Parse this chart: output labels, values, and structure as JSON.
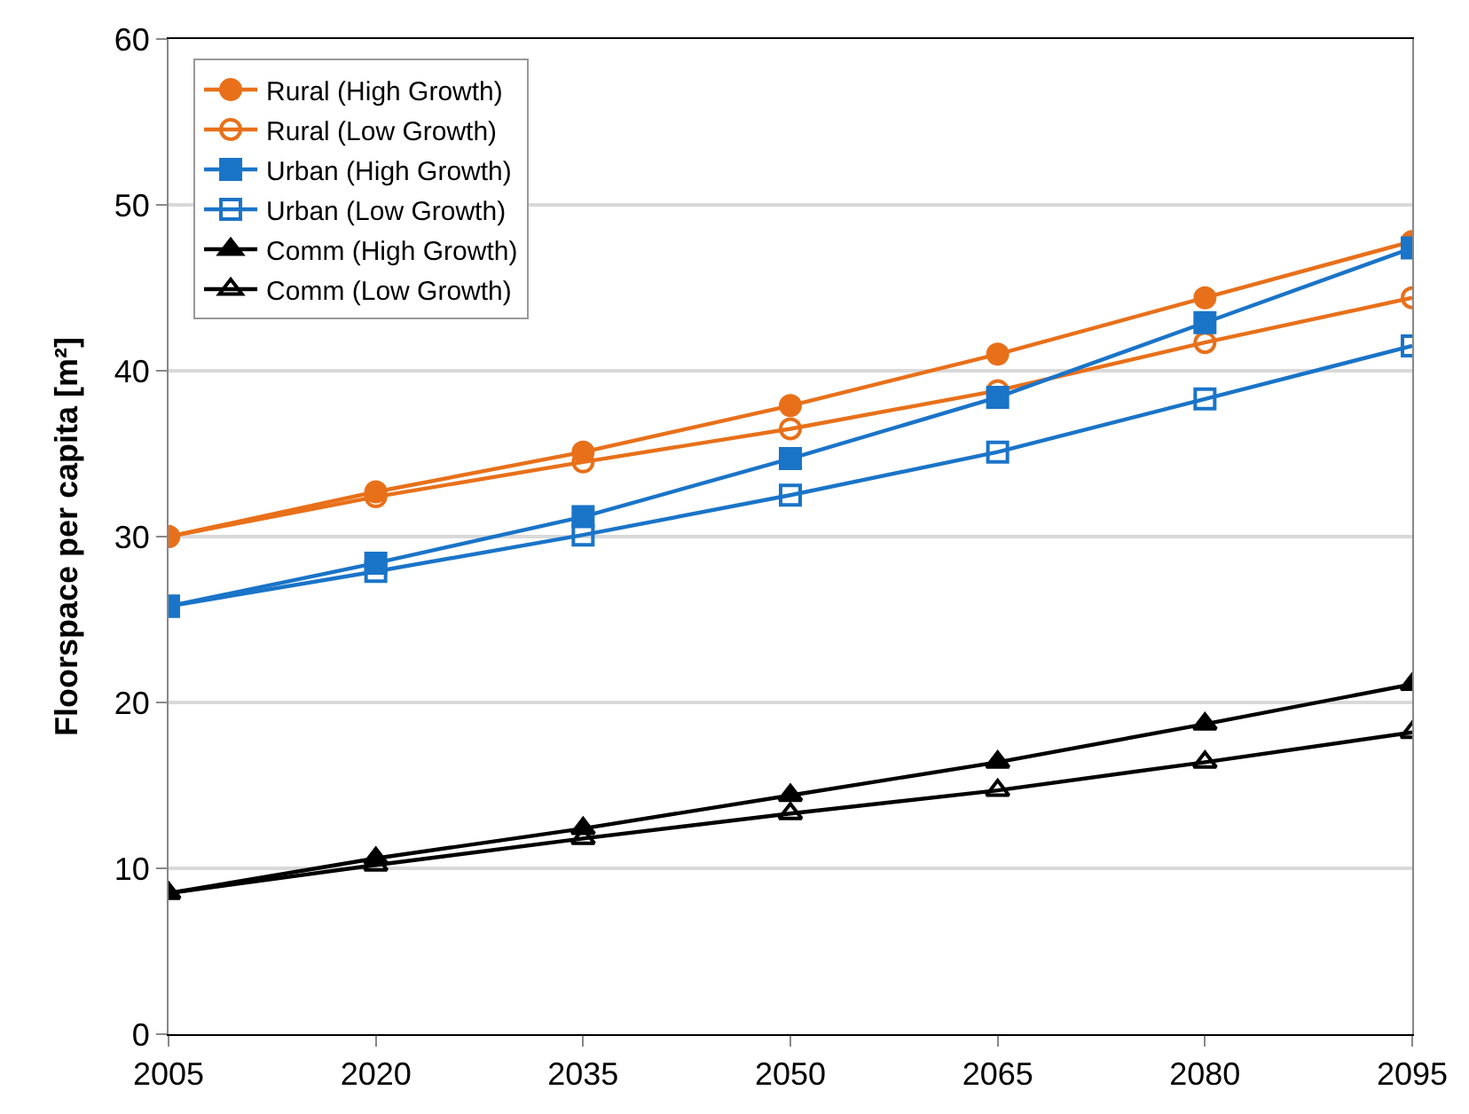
{
  "chart_data": {
    "type": "line",
    "ylabel": "Floorspace per capita [m²]",
    "x": [
      2005,
      2020,
      2035,
      2050,
      2065,
      2080,
      2095
    ],
    "xlim": [
      2005,
      2095
    ],
    "xticks": [
      2005,
      2020,
      2035,
      2050,
      2065,
      2080,
      2095
    ],
    "ylim": [
      0,
      60
    ],
    "yticks": [
      0,
      10,
      20,
      30,
      40,
      50,
      60
    ],
    "grid": "y",
    "legend": "top left",
    "series": [
      {
        "name": "Rural (High Growth)",
        "color": "#e8701a",
        "marker": "circle",
        "values": [
          30,
          32.7,
          35.1,
          37.9,
          41.0,
          44.4,
          47.8
        ]
      },
      {
        "name": "Rural (Low Growth)",
        "color": "#e8701a",
        "marker": "circle",
        "values": [
          30,
          32.4,
          34.5,
          36.5,
          38.8,
          41.7,
          44.4
        ]
      },
      {
        "name": "Urban (High Growth)",
        "color": "#1a74c8",
        "marker": "square",
        "values": [
          25.8,
          28.4,
          31.2,
          34.7,
          38.4,
          42.9,
          47.4
        ]
      },
      {
        "name": "Urban (Low Growth)",
        "color": "#1a74c8",
        "marker": "square",
        "values": [
          25.8,
          27.9,
          30.1,
          32.5,
          35.1,
          38.3,
          41.5
        ]
      },
      {
        "name": "Comm (High Growth)",
        "color": "#000000",
        "marker": "triangle",
        "values": [
          8.5,
          10.6,
          12.4,
          14.4,
          16.4,
          18.7,
          21.1
        ]
      },
      {
        "name": "Comm (Low Growth)",
        "color": "#000000",
        "marker": "triangle",
        "values": [
          8.5,
          10.2,
          11.8,
          13.3,
          14.7,
          16.4,
          18.2
        ]
      }
    ]
  }
}
